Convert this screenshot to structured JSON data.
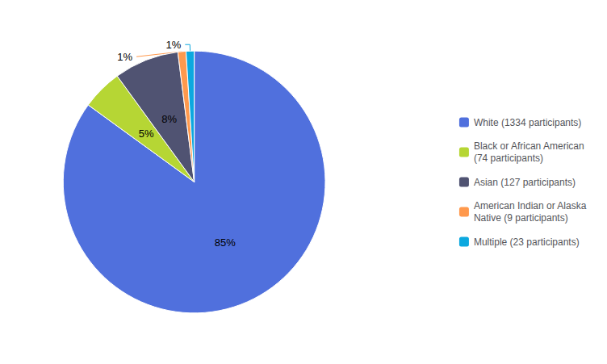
{
  "chart_data": {
    "type": "pie",
    "categories": [
      "White (1334 participants)",
      "Black or African American\n(74 participants)",
      "Asian (127 participants)",
      "American Indian or Alaska\nNative (9 participants)",
      "Multiple (23 participants)"
    ],
    "values": [
      85,
      5,
      8,
      1,
      1
    ],
    "value_labels": [
      "85%",
      "5%",
      "8%",
      "1%",
      "1%"
    ],
    "data_labels": true,
    "legend": "right"
  }
}
